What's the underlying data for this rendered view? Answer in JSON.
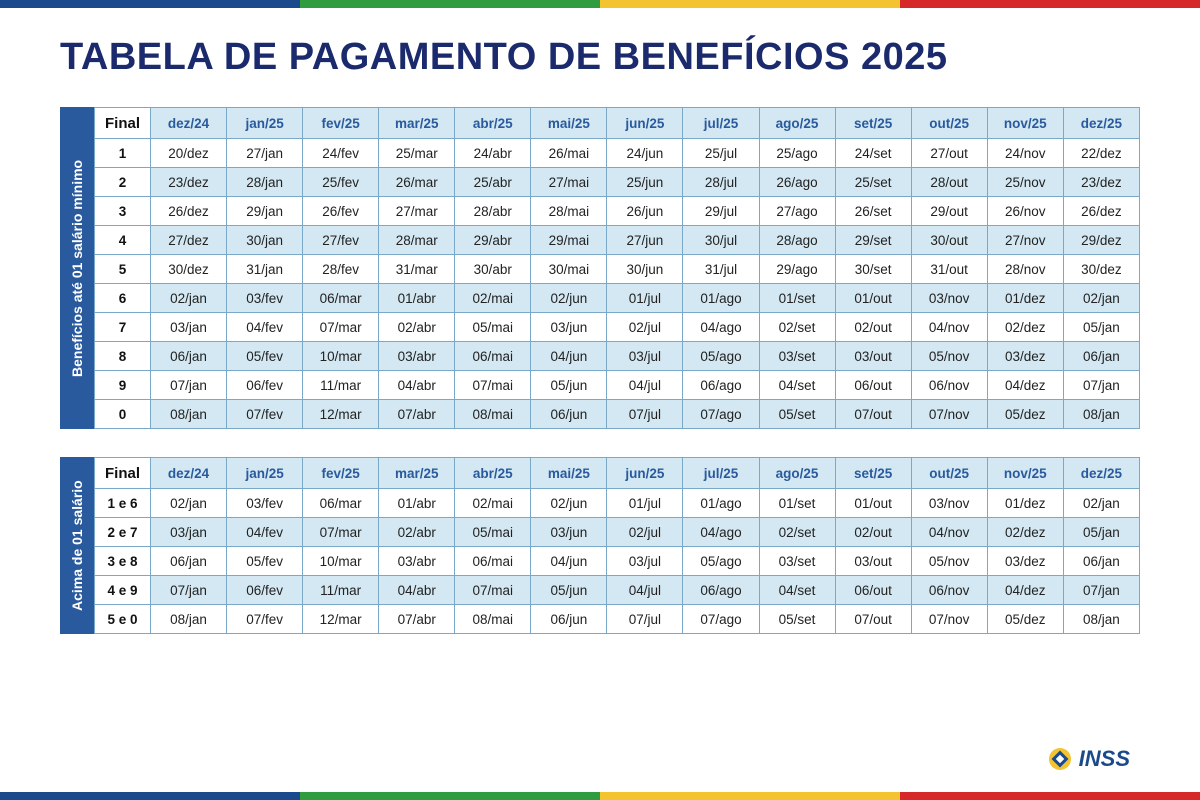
{
  "title": "TABELA DE PAGAMENTO DE BENEFÍCIOS 2025",
  "title_color": "#1a2a6c",
  "stripe_colors": [
    "#1a4a8c",
    "#2e9c3f",
    "#f4c430",
    "#d62828"
  ],
  "header_bg": "#d3e8f2",
  "header_text_color": "#2a5a9e",
  "row_alt_bg": "#d3e8f2",
  "row_norm_bg": "#ffffff",
  "border_color": "#7aa8c8",
  "side_label_bg": "#2a5a9e",
  "final_label": "Final",
  "months": [
    "dez/24",
    "jan/25",
    "fev/25",
    "mar/25",
    "abr/25",
    "mai/25",
    "jun/25",
    "jul/25",
    "ago/25",
    "set/25",
    "out/25",
    "nov/25",
    "dez/25"
  ],
  "table1": {
    "side_label": "Benefícios até 01 salário mínimo",
    "rows": [
      {
        "key": "1",
        "vals": [
          "20/dez",
          "27/jan",
          "24/fev",
          "25/mar",
          "24/abr",
          "26/mai",
          "24/jun",
          "25/jul",
          "25/ago",
          "24/set",
          "27/out",
          "24/nov",
          "22/dez"
        ]
      },
      {
        "key": "2",
        "vals": [
          "23/dez",
          "28/jan",
          "25/fev",
          "26/mar",
          "25/abr",
          "27/mai",
          "25/jun",
          "28/jul",
          "26/ago",
          "25/set",
          "28/out",
          "25/nov",
          "23/dez"
        ]
      },
      {
        "key": "3",
        "vals": [
          "26/dez",
          "29/jan",
          "26/fev",
          "27/mar",
          "28/abr",
          "28/mai",
          "26/jun",
          "29/jul",
          "27/ago",
          "26/set",
          "29/out",
          "26/nov",
          "26/dez"
        ]
      },
      {
        "key": "4",
        "vals": [
          "27/dez",
          "30/jan",
          "27/fev",
          "28/mar",
          "29/abr",
          "29/mai",
          "27/jun",
          "30/jul",
          "28/ago",
          "29/set",
          "30/out",
          "27/nov",
          "29/dez"
        ]
      },
      {
        "key": "5",
        "vals": [
          "30/dez",
          "31/jan",
          "28/fev",
          "31/mar",
          "30/abr",
          "30/mai",
          "30/jun",
          "31/jul",
          "29/ago",
          "30/set",
          "31/out",
          "28/nov",
          "30/dez"
        ]
      },
      {
        "key": "6",
        "vals": [
          "02/jan",
          "03/fev",
          "06/mar",
          "01/abr",
          "02/mai",
          "02/jun",
          "01/jul",
          "01/ago",
          "01/set",
          "01/out",
          "03/nov",
          "01/dez",
          "02/jan"
        ]
      },
      {
        "key": "7",
        "vals": [
          "03/jan",
          "04/fev",
          "07/mar",
          "02/abr",
          "05/mai",
          "03/jun",
          "02/jul",
          "04/ago",
          "02/set",
          "02/out",
          "04/nov",
          "02/dez",
          "05/jan"
        ]
      },
      {
        "key": "8",
        "vals": [
          "06/jan",
          "05/fev",
          "10/mar",
          "03/abr",
          "06/mai",
          "04/jun",
          "03/jul",
          "05/ago",
          "03/set",
          "03/out",
          "05/nov",
          "03/dez",
          "06/jan"
        ]
      },
      {
        "key": "9",
        "vals": [
          "07/jan",
          "06/fev",
          "11/mar",
          "04/abr",
          "07/mai",
          "05/jun",
          "04/jul",
          "06/ago",
          "04/set",
          "06/out",
          "06/nov",
          "04/dez",
          "07/jan"
        ]
      },
      {
        "key": "0",
        "vals": [
          "08/jan",
          "07/fev",
          "12/mar",
          "07/abr",
          "08/mai",
          "06/jun",
          "07/jul",
          "07/ago",
          "05/set",
          "07/out",
          "07/nov",
          "05/dez",
          "08/jan"
        ]
      }
    ]
  },
  "table2": {
    "side_label": "Acima de 01 salário",
    "rows": [
      {
        "key": "1 e 6",
        "vals": [
          "02/jan",
          "03/fev",
          "06/mar",
          "01/abr",
          "02/mai",
          "02/jun",
          "01/jul",
          "01/ago",
          "01/set",
          "01/out",
          "03/nov",
          "01/dez",
          "02/jan"
        ]
      },
      {
        "key": "2 e 7",
        "vals": [
          "03/jan",
          "04/fev",
          "07/mar",
          "02/abr",
          "05/mai",
          "03/jun",
          "02/jul",
          "04/ago",
          "02/set",
          "02/out",
          "04/nov",
          "02/dez",
          "05/jan"
        ]
      },
      {
        "key": "3 e 8",
        "vals": [
          "06/jan",
          "05/fev",
          "10/mar",
          "03/abr",
          "06/mai",
          "04/jun",
          "03/jul",
          "05/ago",
          "03/set",
          "03/out",
          "05/nov",
          "03/dez",
          "06/jan"
        ]
      },
      {
        "key": "4 e 9",
        "vals": [
          "07/jan",
          "06/fev",
          "11/mar",
          "04/abr",
          "07/mai",
          "05/jun",
          "04/jul",
          "06/ago",
          "04/set",
          "06/out",
          "06/nov",
          "04/dez",
          "07/jan"
        ]
      },
      {
        "key": "5 e 0",
        "vals": [
          "08/jan",
          "07/fev",
          "12/mar",
          "07/abr",
          "08/mai",
          "06/jun",
          "07/jul",
          "07/ago",
          "05/set",
          "07/out",
          "07/nov",
          "05/dez",
          "08/jan"
        ]
      }
    ]
  },
  "logo_text": "INSS"
}
